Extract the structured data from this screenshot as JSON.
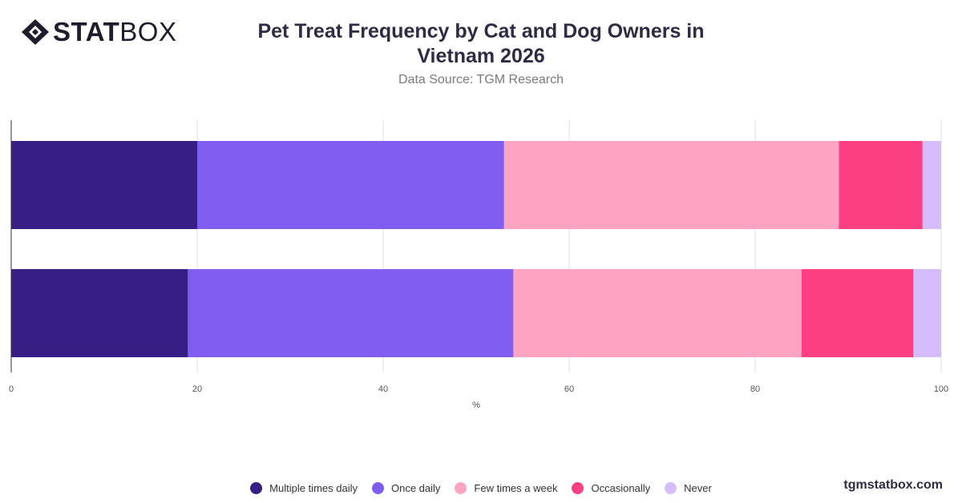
{
  "logo": {
    "bold": "STAT",
    "light": "BOX"
  },
  "title": "Pet Treat Frequency by Cat and Dog Owners in Vietnam 2026",
  "subtitle": "Data Source: TGM Research",
  "footer": "tgmstatbox.com",
  "colors": {
    "Multiple times daily": "#371e84",
    "Once daily": "#7f5df0",
    "Few times a week": "#fda4c3",
    "Occasionally": "#fd3e82",
    "Never": "#d5bdfb"
  },
  "chart_data": {
    "type": "bar",
    "orientation": "horizontal",
    "stacked": true,
    "categories": [
      "",
      ""
    ],
    "series": [
      {
        "name": "Multiple times daily",
        "values": [
          20,
          19
        ]
      },
      {
        "name": "Once daily",
        "values": [
          33,
          35
        ]
      },
      {
        "name": "Few times a week",
        "values": [
          36,
          31
        ]
      },
      {
        "name": "Occasionally",
        "values": [
          9,
          12
        ]
      },
      {
        "name": "Never",
        "values": [
          2,
          3
        ]
      }
    ],
    "xlabel": "%",
    "ylabel": "",
    "xlim": [
      0,
      100
    ],
    "xticks": [
      0,
      20,
      40,
      60,
      80,
      100
    ],
    "grid": true,
    "legend_position": "bottom"
  }
}
